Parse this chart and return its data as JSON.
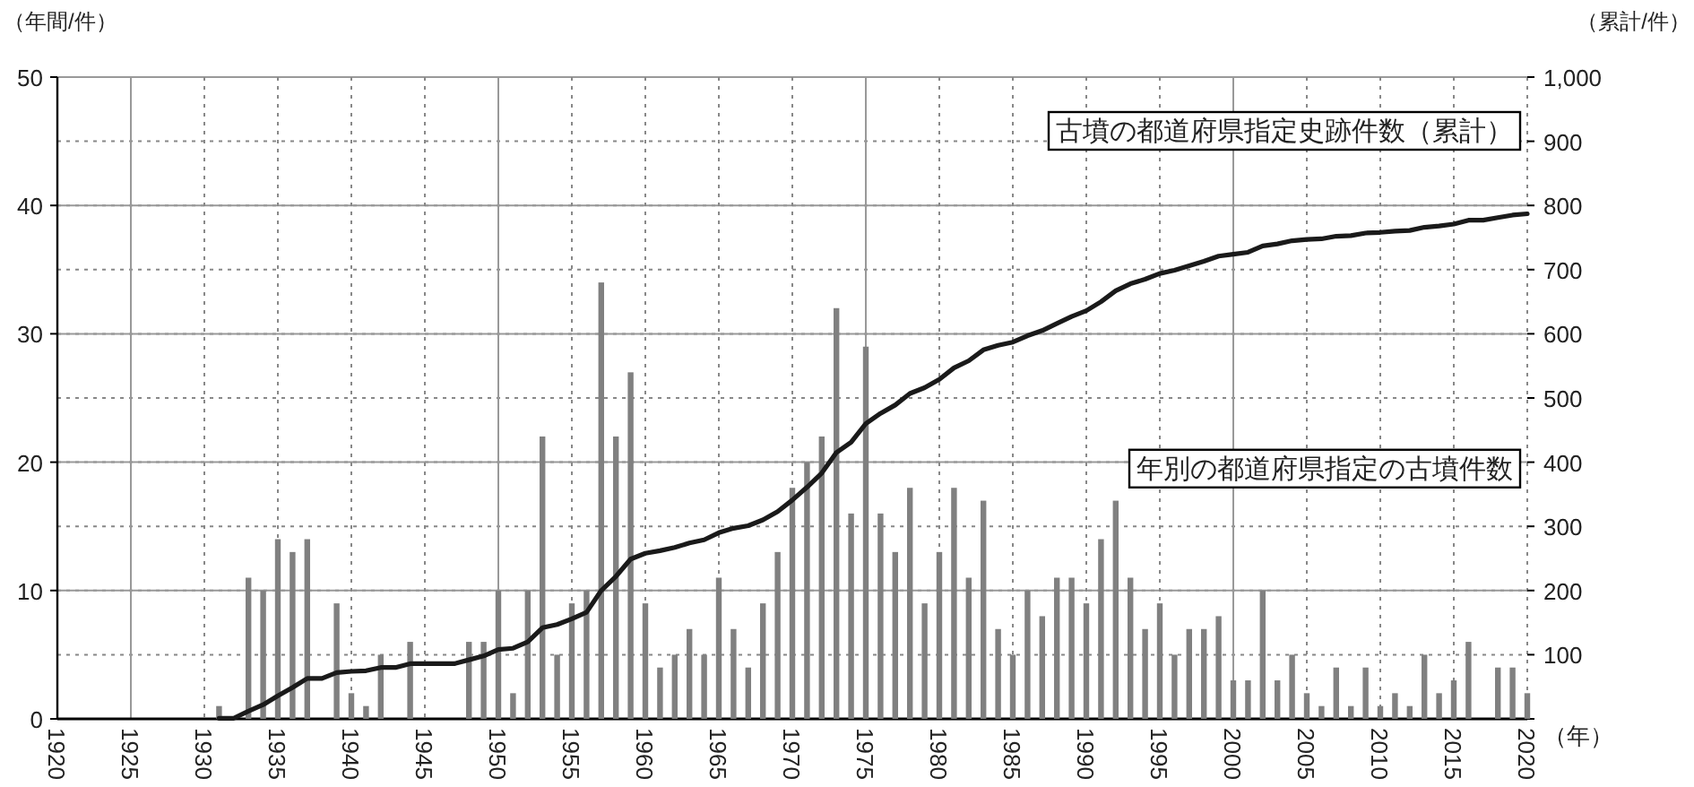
{
  "chart_data": {
    "type": "bar",
    "ylabel": "（年間/件）",
    "y2label": "（累計/件）",
    "xlabel": "（年）",
    "grid": true,
    "x": [
      1931,
      1932,
      1933,
      1934,
      1935,
      1936,
      1937,
      1938,
      1939,
      1940,
      1941,
      1942,
      1943,
      1944,
      1945,
      1946,
      1947,
      1948,
      1949,
      1950,
      1951,
      1952,
      1953,
      1954,
      1955,
      1956,
      1957,
      1958,
      1959,
      1960,
      1961,
      1962,
      1963,
      1964,
      1965,
      1966,
      1967,
      1968,
      1969,
      1970,
      1971,
      1972,
      1973,
      1974,
      1975,
      1976,
      1977,
      1978,
      1979,
      1980,
      1981,
      1982,
      1983,
      1984,
      1985,
      1986,
      1987,
      1988,
      1989,
      1990,
      1991,
      1992,
      1993,
      1994,
      1995,
      1996,
      1997,
      1998,
      1999,
      2000,
      2001,
      2002,
      2003,
      2004,
      2005,
      2006,
      2007,
      2008,
      2009,
      2010,
      2011,
      2012,
      2013,
      2014,
      2015,
      2016,
      2017,
      2018,
      2019,
      2020
    ],
    "xlim": [
      1920,
      2020
    ],
    "xticks": [
      1920,
      1925,
      1930,
      1935,
      1940,
      1945,
      1950,
      1955,
      1960,
      1965,
      1970,
      1975,
      1980,
      1985,
      1990,
      1995,
      2000,
      2005,
      2010,
      2015,
      2020
    ],
    "ylim": [
      0,
      50
    ],
    "yticks": [
      0,
      10,
      20,
      30,
      40,
      50
    ],
    "y2lim": [
      0,
      1000
    ],
    "y2ticks": [
      {
        "value": 0,
        "label": null
      },
      100,
      200,
      300,
      400,
      500,
      600,
      700,
      800,
      900,
      {
        "value": 1000,
        "label": "1,000"
      }
    ],
    "series": [
      {
        "name": "年別の都道府県指定の古墳件数",
        "color": "#808080",
        "values": [
          1,
          0,
          11,
          10,
          14,
          13,
          14,
          0,
          9,
          2,
          1,
          5,
          0,
          6,
          0,
          0,
          0,
          6,
          6,
          10,
          2,
          10,
          22,
          5,
          9,
          10,
          34,
          22,
          27,
          9,
          4,
          5,
          7,
          5,
          11,
          7,
          4,
          9,
          13,
          18,
          20,
          22,
          32,
          16,
          29,
          16,
          13,
          18,
          9,
          13,
          18,
          11,
          17,
          7,
          5,
          10,
          8,
          11,
          11,
          9,
          14,
          17,
          11,
          7,
          9,
          5,
          7,
          7,
          8,
          3,
          3,
          10,
          3,
          5,
          2,
          1,
          4,
          1,
          4,
          1,
          2,
          1,
          5,
          2,
          3,
          6,
          0,
          4,
          4,
          2
        ]
      },
      {
        "name": "古墳の都道府県指定史跡件数（累計）",
        "type": "line",
        "axis": "y2",
        "color": "#1a1a1a",
        "values": [
          1,
          1,
          12,
          22,
          36,
          49,
          63,
          63,
          72,
          74,
          75,
          80,
          80,
          86,
          86,
          86,
          86,
          92,
          98,
          108,
          110,
          120,
          142,
          147,
          156,
          166,
          200,
          222,
          249,
          258,
          262,
          267,
          274,
          279,
          290,
          297,
          301,
          310,
          323,
          341,
          361,
          383,
          415,
          431,
          460,
          476,
          489,
          507,
          516,
          529,
          547,
          558,
          575,
          582,
          587,
          597,
          605,
          616,
          627,
          636,
          650,
          667,
          678,
          685,
          694,
          699,
          706,
          713,
          721,
          724,
          727,
          737,
          740,
          745,
          747,
          748,
          752,
          753,
          757,
          758,
          760,
          761,
          766,
          768,
          771,
          777,
          777,
          781,
          785,
          787
        ]
      }
    ]
  }
}
